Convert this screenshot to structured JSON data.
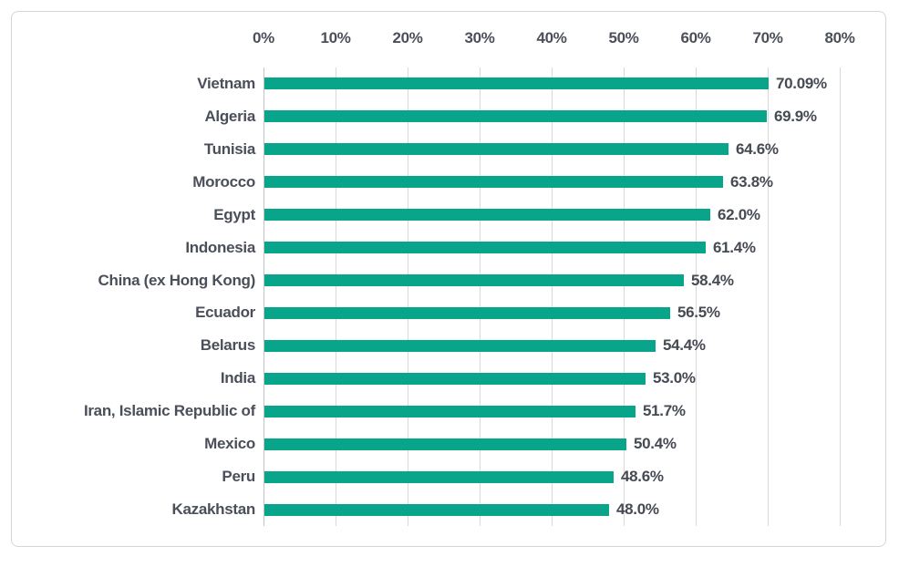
{
  "chart_data": {
    "type": "bar",
    "orientation": "horizontal",
    "title": "",
    "xlabel": "",
    "ylabel": "",
    "categories": [
      "Vietnam",
      "Algeria",
      "Tunisia",
      "Morocco",
      "Egypt",
      "Indonesia",
      "China (ex Hong Kong)",
      "Ecuador",
      "Belarus",
      "India",
      "Iran, Islamic Republic of",
      "Mexico",
      "Peru",
      "Kazakhstan"
    ],
    "values": [
      70.09,
      69.9,
      64.6,
      63.8,
      62.0,
      61.4,
      58.4,
      56.5,
      54.4,
      53.0,
      51.7,
      50.4,
      48.6,
      48.0
    ],
    "value_labels": [
      "70.09%",
      "69.9%",
      "64.6%",
      "63.8%",
      "62.0%",
      "61.4%",
      "58.4%",
      "56.5%",
      "54.4%",
      "53.0%",
      "51.7%",
      "50.4%",
      "48.6%",
      "48.0%"
    ],
    "x_axis": {
      "position": "top",
      "min": 0,
      "max": 80,
      "tick_step": 10,
      "tick_labels": [
        "0%",
        "10%",
        "20%",
        "30%",
        "40%",
        "50%",
        "60%",
        "70%",
        "80%"
      ]
    },
    "legend": "none",
    "grid": "vertical",
    "colors": {
      "bar": "#09a58a",
      "text": "#4a4f59",
      "gridline": "#d9d9d9",
      "axis_line": "#c4c4c4",
      "frame_border": "#d5d5d5",
      "background": "#ffffff"
    }
  }
}
